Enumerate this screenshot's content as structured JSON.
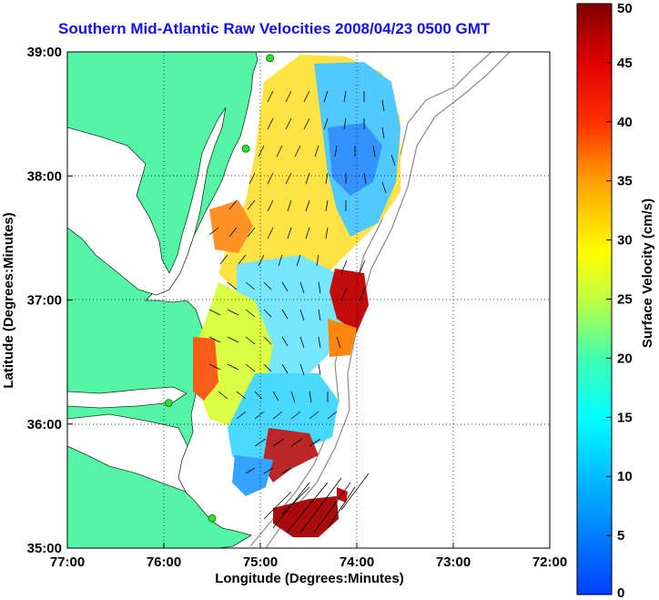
{
  "map": {
    "title": "Southern Mid-Atlantic Raw Velocities 2008/04/23 0500 GMT",
    "xlabel": "Longitude (Degrees:Minutes)",
    "ylabel": "Latitude (Degrees:Minutes)",
    "x_ticks": [
      "77:00",
      "76:00",
      "75:00",
      "74:00",
      "73:00",
      "72:00"
    ],
    "y_ticks": [
      "39:00",
      "38:00",
      "37:00",
      "36:00",
      "35:00"
    ],
    "lon_range": [
      -77,
      -72
    ],
    "lat_range": [
      35,
      39
    ],
    "land_color": "#55f5a8",
    "colorbar": {
      "label": "Surface Velocity (cm/s)",
      "ticks": [
        "50",
        "45",
        "40",
        "35",
        "30",
        "25",
        "20",
        "15",
        "10",
        "5",
        "0"
      ],
      "range": [
        0,
        50
      ]
    },
    "stations": [
      {
        "lon": -74.9,
        "lat": 38.95
      },
      {
        "lon": -75.15,
        "lat": 38.22
      },
      {
        "lon": -75.95,
        "lat": 36.17
      },
      {
        "lon": -75.5,
        "lat": 35.24
      }
    ]
  }
}
